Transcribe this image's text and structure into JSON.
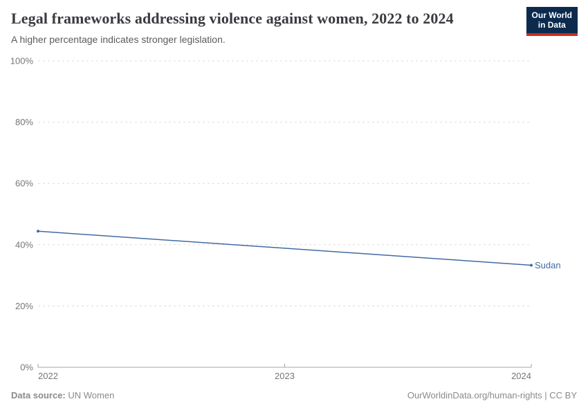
{
  "header": {
    "title": "Legal frameworks addressing violence against women, 2022 to 2024",
    "subtitle": "A higher percentage indicates stronger legislation."
  },
  "logo": {
    "line1": "Our World",
    "line2": "in Data",
    "bg_color": "#0b2a4e",
    "accent_color": "#d02a20"
  },
  "chart_data": {
    "type": "line",
    "title": "Legal frameworks addressing violence against women, 2022 to 2024",
    "subtitle": "A higher percentage indicates stronger legislation.",
    "x": [
      2022,
      2024
    ],
    "series": [
      {
        "name": "Sudan",
        "values": [
          44.4,
          33.3
        ],
        "color": "#4269a5"
      }
    ],
    "ylim": [
      0,
      100
    ],
    "yticks": [
      0,
      20,
      40,
      60,
      80,
      100
    ],
    "ytick_labels": [
      "0%",
      "20%",
      "40%",
      "60%",
      "80%",
      "100%"
    ],
    "xticks": [
      2022,
      2023,
      2024
    ],
    "xtick_labels": [
      "2022",
      "2023",
      "2024"
    ],
    "grid": "horizontal-dashed",
    "grid_color": "#dcdcdc",
    "axis_color": "#a5a5a5",
    "legend": "line-end-label"
  },
  "footer": {
    "source_label": "Data source:",
    "source_value": " UN Women",
    "right_text": "OurWorldinData.org/human-rights | CC BY"
  }
}
